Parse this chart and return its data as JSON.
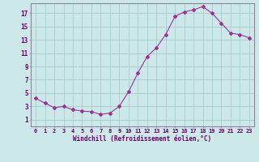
{
  "x": [
    0,
    1,
    2,
    3,
    4,
    5,
    6,
    7,
    8,
    9,
    10,
    11,
    12,
    13,
    14,
    15,
    16,
    17,
    18,
    19,
    20,
    21,
    22,
    23
  ],
  "y": [
    4.2,
    3.5,
    2.8,
    3.0,
    2.5,
    2.3,
    2.2,
    1.8,
    2.0,
    3.0,
    5.2,
    8.0,
    10.5,
    11.8,
    13.8,
    16.5,
    17.2,
    17.5,
    18.0,
    17.0,
    15.5,
    14.0,
    13.8,
    13.3
  ],
  "line_color": "#993399",
  "marker": "D",
  "marker_size": 2.0,
  "bg_color": "#cce8e8",
  "grid_color": "#aacccc",
  "xlabel": "Windchill (Refroidissement éolien,°C)",
  "ylim": [
    0,
    18.5
  ],
  "xlim": [
    -0.5,
    23.5
  ],
  "yticks": [
    1,
    3,
    5,
    7,
    9,
    11,
    13,
    15,
    17
  ],
  "xticks": [
    0,
    1,
    2,
    3,
    4,
    5,
    6,
    7,
    8,
    9,
    10,
    11,
    12,
    13,
    14,
    15,
    16,
    17,
    18,
    19,
    20,
    21,
    22,
    23
  ],
  "tick_color": "#660066",
  "label_color": "#660066",
  "border_color": "#888899",
  "font_family": "monospace",
  "tick_fontsize": 5.0,
  "xlabel_fontsize": 5.5
}
